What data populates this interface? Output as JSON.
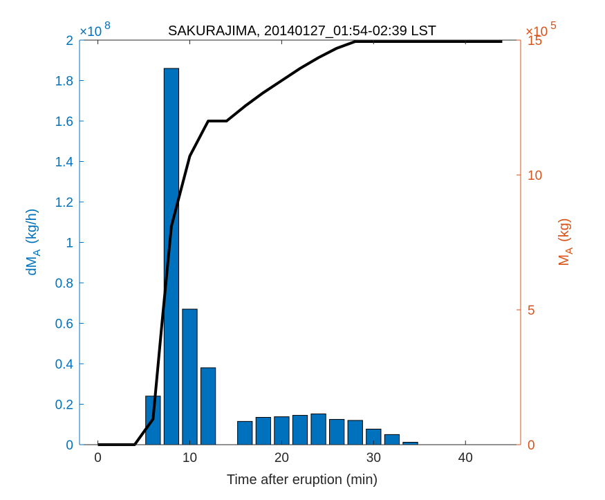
{
  "colors": {
    "left_axis": "#0072BD",
    "right_axis": "#D95319",
    "bar_fill": "#0072BD",
    "line": "#000000"
  },
  "chart_data": {
    "type": "bar",
    "title": "SAKURAJIMA, 20140127_01:54-02:39 LST",
    "xlabel": "Time after eruption (min)",
    "ylabel_left": "dM",
    "ylabel_left_sub": "A",
    "ylabel_left_unit": "(kg/h)",
    "ylabel_right": "M",
    "ylabel_right_sub": "A",
    "ylabel_right_unit": "(kg)",
    "left_exponent": "×10",
    "left_exponent_power": "8",
    "right_exponent": "×10",
    "right_exponent_power": "5",
    "xlim": [
      -2,
      46
    ],
    "ylim_left": [
      0,
      2
    ],
    "ylim_right": [
      0,
      15
    ],
    "x_ticks": [
      "0",
      "10",
      "20",
      "30",
      "40"
    ],
    "left_ticks": [
      "0",
      "0.2",
      "0.4",
      "0.6",
      "0.8",
      "1",
      "1.2",
      "1.4",
      "1.6",
      "1.8",
      "2"
    ],
    "right_ticks": [
      "0",
      "5",
      "10",
      "15"
    ],
    "bars": {
      "axis": "left",
      "x": [
        6,
        8,
        10,
        12,
        16,
        18,
        20,
        22,
        24,
        26,
        28,
        30,
        32,
        34
      ],
      "values": [
        0.24,
        1.86,
        0.67,
        0.38,
        0.115,
        0.135,
        0.138,
        0.145,
        0.152,
        0.125,
        0.12,
        0.077,
        0.05,
        0.012
      ]
    },
    "line": {
      "axis": "right",
      "x": [
        0,
        4,
        6,
        7,
        8,
        10,
        12,
        14,
        16,
        18,
        20,
        22,
        24,
        26,
        28,
        30,
        32,
        34,
        36,
        38,
        40,
        42,
        44
      ],
      "values": [
        0,
        0,
        0.95,
        4.6,
        8.1,
        10.7,
        12.0,
        12.0,
        12.55,
        13.05,
        13.5,
        13.95,
        14.35,
        14.7,
        14.98,
        15.16,
        15.26,
        15.3,
        15.3,
        15.3,
        15.3,
        15.3,
        15.3
      ]
    }
  }
}
